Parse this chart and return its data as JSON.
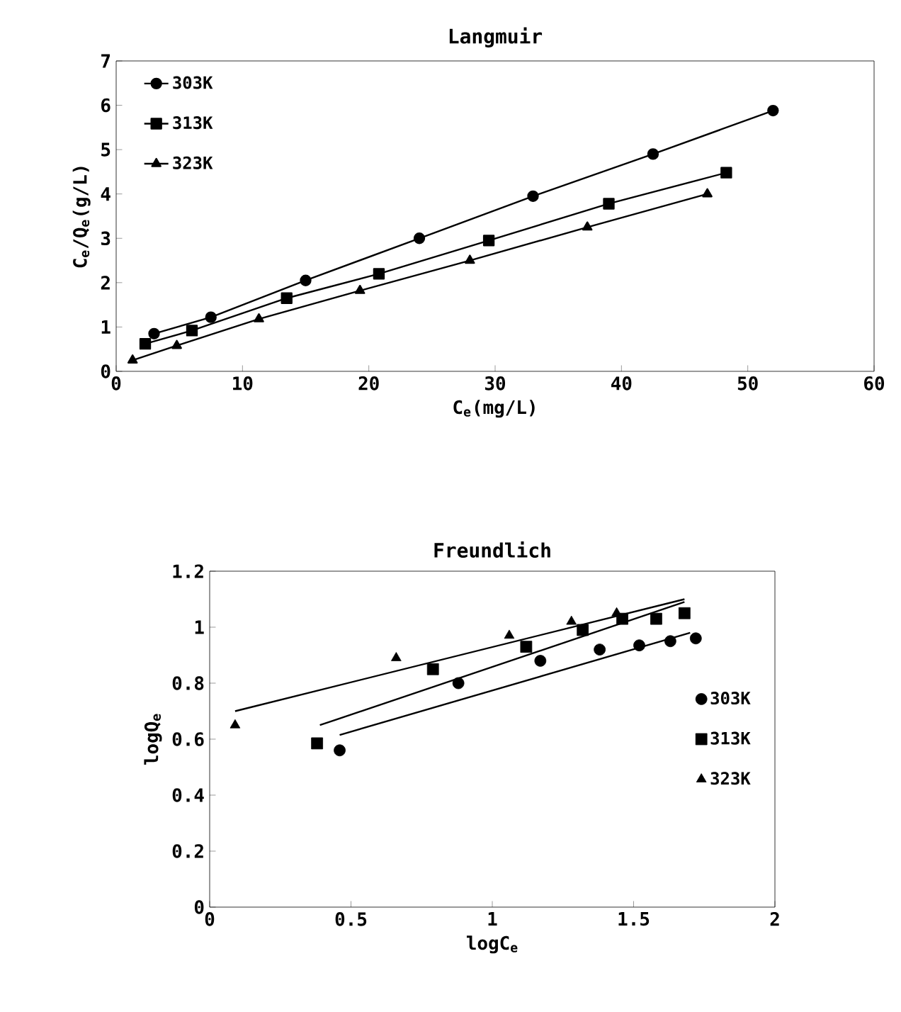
{
  "chart_data": [
    {
      "type": "line",
      "title": "Langmuir",
      "xlabel": "C$_{e}$(mg/L)",
      "ylabel": "C$_{e}$/Q$_{e}$(g/L)",
      "xlim": [
        0,
        60
      ],
      "ylim": [
        0,
        7
      ],
      "xticks": [
        0,
        10,
        20,
        30,
        40,
        50,
        60
      ],
      "yticks": [
        0,
        1,
        2,
        3,
        4,
        5,
        6,
        7
      ],
      "legend": "top left",
      "line_style": "solid",
      "series": [
        {
          "name": "303K",
          "color": "#000000",
          "marker": "circle",
          "x": [
            3,
            7.5,
            15,
            24,
            33,
            42.5,
            52
          ],
          "values": [
            0.85,
            1.22,
            2.05,
            3.0,
            3.95,
            4.9,
            5.88
          ]
        },
        {
          "name": "313K",
          "color": "#000000",
          "marker": "square",
          "x": [
            2.3,
            6,
            13.5,
            20.8,
            29.5,
            39,
            48.3
          ],
          "values": [
            0.62,
            0.92,
            1.65,
            2.2,
            2.95,
            3.78,
            4.48
          ]
        },
        {
          "name": "323K",
          "color": "#000000",
          "marker": "triangle",
          "x": [
            1.3,
            4.8,
            11.3,
            19.3,
            28,
            37.3,
            46.8
          ],
          "values": [
            0.25,
            0.58,
            1.18,
            1.82,
            2.5,
            3.25,
            4.0
          ]
        }
      ]
    },
    {
      "type": "scatter",
      "title": "Freundlich",
      "xlabel": "logC$_{e}$",
      "ylabel": "logQ$_{e}$",
      "xlim": [
        0,
        2
      ],
      "ylim": [
        0,
        1.2
      ],
      "xticks": [
        0,
        0.5,
        1,
        1.5,
        2
      ],
      "yticks": [
        0,
        0.2,
        0.4,
        0.6,
        0.8,
        1,
        1.2
      ],
      "legend": "right",
      "series": [
        {
          "name": "303K",
          "color": "#000000",
          "marker": "circle",
          "x": [
            0.46,
            0.88,
            1.17,
            1.38,
            1.52,
            1.63,
            1.72
          ],
          "values": [
            0.56,
            0.8,
            0.88,
            0.92,
            0.935,
            0.95,
            0.96
          ]
        },
        {
          "name": "313K",
          "color": "#000000",
          "marker": "square",
          "x": [
            0.38,
            0.79,
            1.12,
            1.32,
            1.46,
            1.58,
            1.68
          ],
          "values": [
            0.585,
            0.85,
            0.93,
            0.99,
            1.03,
            1.03,
            1.05
          ]
        },
        {
          "name": "323K",
          "color": "#000000",
          "marker": "triangle",
          "x": [
            0.09,
            0.66,
            1.06,
            1.28,
            1.44
          ],
          "values": [
            0.65,
            0.89,
            0.97,
            1.02,
            1.05
          ]
        },
        {
          "type": "line",
          "color": "#000000",
          "marker": "none",
          "x": [
            0.46,
            1.7
          ],
          "values": [
            0.615,
            0.98
          ]
        },
        {
          "type": "line",
          "color": "#000000",
          "marker": "none",
          "x": [
            0.39,
            1.68
          ],
          "values": [
            0.65,
            1.09
          ]
        },
        {
          "type": "line",
          "color": "#000000",
          "marker": "none",
          "x": [
            0.09,
            1.68
          ],
          "values": [
            0.7,
            1.1
          ]
        }
      ]
    }
  ]
}
